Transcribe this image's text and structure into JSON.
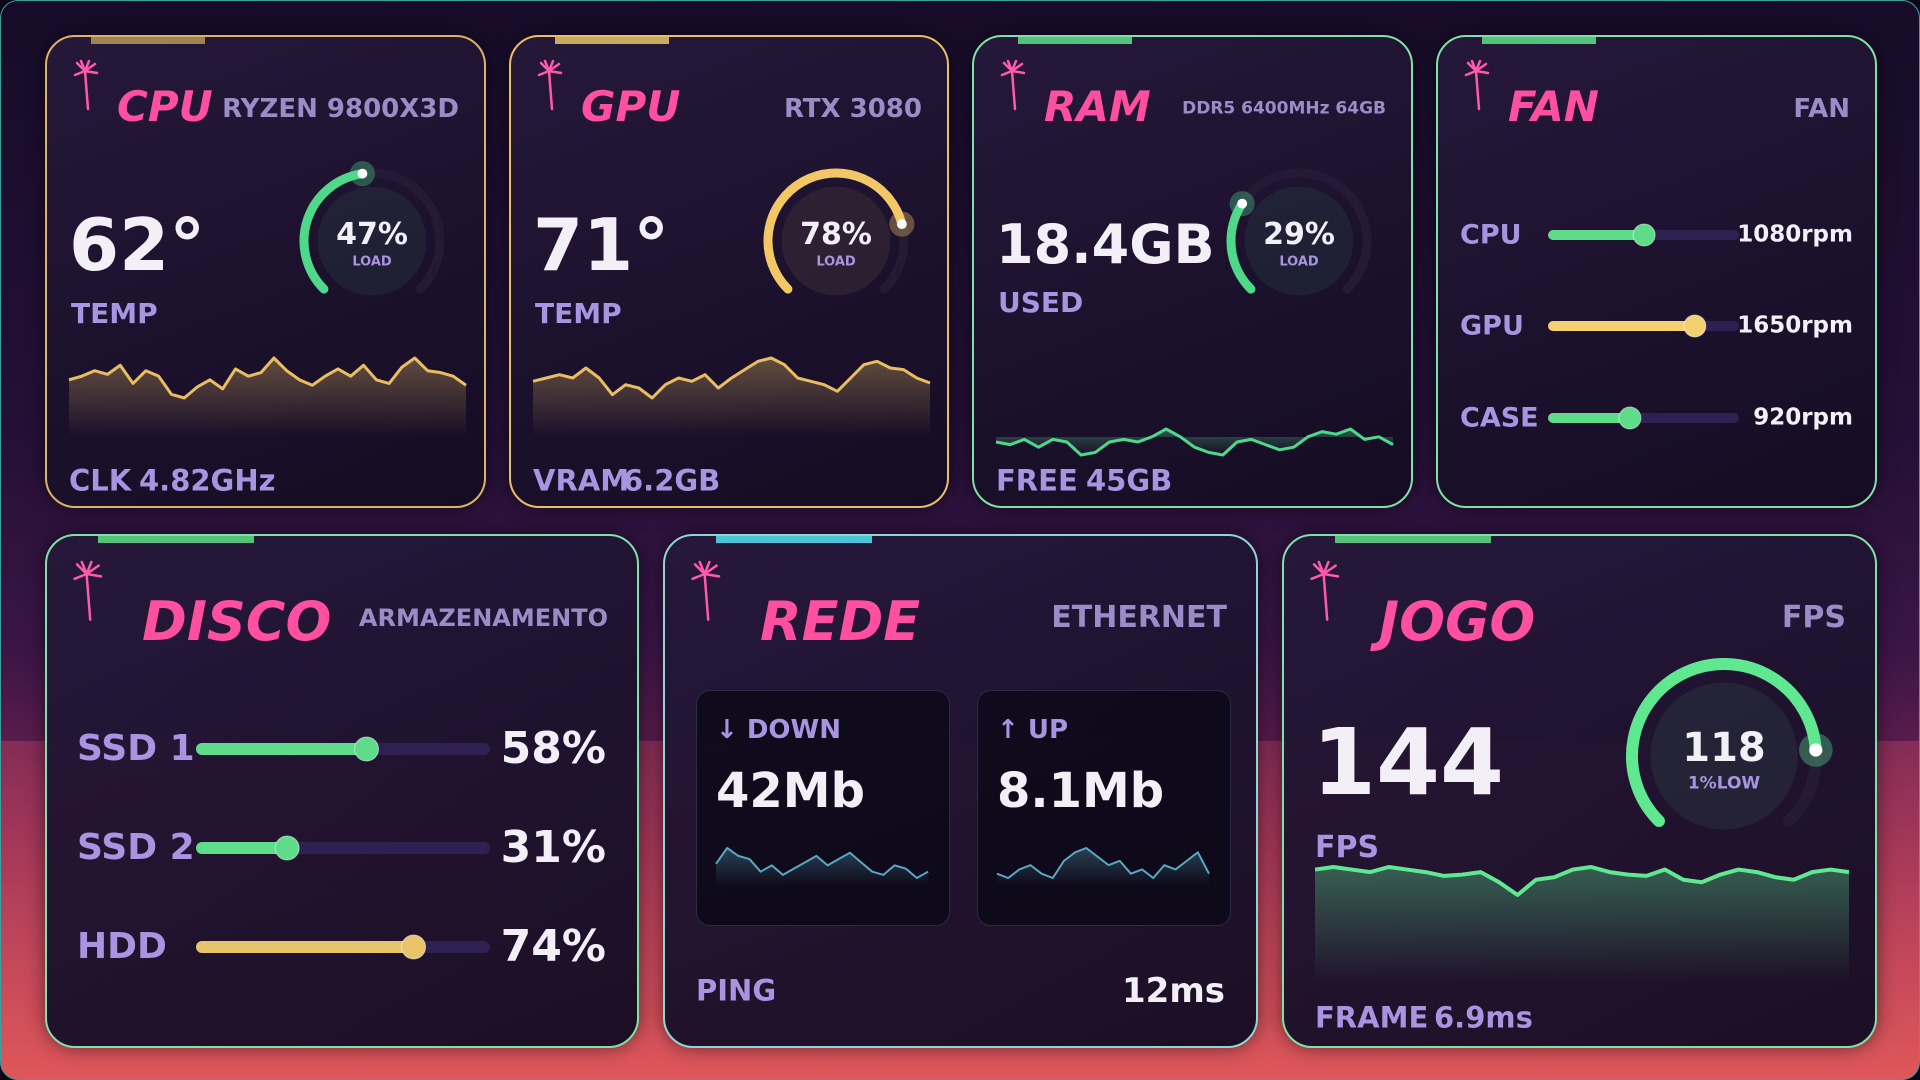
{
  "panels": [
    {
      "title": "CPU",
      "subtitle": "RYZEN 9800X3D",
      "reading": "62°",
      "reading_label": "TEMP",
      "gauge": {
        "value": 47,
        "label": "47%",
        "caption": "LOAD",
        "color": "#4fd88a"
      },
      "history": [
        50,
        52,
        55,
        53,
        58,
        48,
        55,
        52,
        42,
        40,
        46,
        50,
        45,
        56,
        52,
        54,
        62,
        55,
        50,
        47,
        52,
        56,
        52,
        58,
        50,
        48,
        57,
        62,
        55,
        54,
        52,
        47
      ],
      "history_color": "#e9bd62",
      "footer": {
        "label": "CLK",
        "value": "4.82GHz"
      }
    },
    {
      "title": "GPU",
      "subtitle": "RTX 3080",
      "reading": "71°",
      "reading_label": "TEMP",
      "gauge": {
        "value": 78,
        "label": "78%",
        "caption": "LOAD",
        "color": "#f3c766"
      },
      "history": [
        48,
        50,
        52,
        50,
        56,
        50,
        40,
        46,
        44,
        38,
        46,
        50,
        48,
        52,
        44,
        50,
        55,
        60,
        62,
        58,
        50,
        48,
        46,
        42,
        50,
        58,
        60,
        56,
        55,
        50,
        47
      ],
      "history_color": "#e9bd62",
      "footer": {
        "label": "VRAM",
        "value": "6.2GB"
      }
    },
    {
      "title": "RAM",
      "subtitle": "DDR5 6400MHz 64GB",
      "reading": "18.4GB",
      "reading_label": "USED",
      "gauge": {
        "value": 29,
        "label": "29%",
        "caption": "LOAD",
        "color": "#4fd88a"
      },
      "history": [
        40,
        38,
        42,
        36,
        42,
        40,
        30,
        32,
        40,
        42,
        40,
        44,
        50,
        44,
        36,
        32,
        30,
        40,
        42,
        38,
        34,
        36,
        44,
        48,
        46,
        50,
        42,
        44,
        38
      ],
      "history_color": "#4fd88a",
      "footer": {
        "label": "FREE",
        "value": "45GB"
      }
    },
    {
      "title": "FAN",
      "subtitle": "FAN",
      "fans": [
        {
          "name": "CPU",
          "rpm": 1080,
          "rpm_label": "1080rpm",
          "color": "#5edc8a"
        },
        {
          "name": "GPU",
          "rpm": 1650,
          "rpm_label": "1650rpm",
          "color": "#f5d070"
        },
        {
          "name": "CASE",
          "rpm": 920,
          "rpm_label": "920rpm",
          "color": "#5edc8a"
        }
      ]
    },
    {
      "title": "DISCO",
      "subtitle": "ARMAZENAMENTO",
      "drives": [
        {
          "name": "SSD 1",
          "used": 58,
          "used_label": "58%",
          "color": "#5edc8a"
        },
        {
          "name": "SSD 2",
          "used": 31,
          "used_label": "31%",
          "color": "#5edc8a"
        },
        {
          "name": "HDD",
          "used": 74,
          "used_label": "74%",
          "color": "#e8c46a"
        }
      ]
    },
    {
      "title": "REDE",
      "subtitle": "ETHERNET",
      "links": [
        {
          "label": "↓ DOWN",
          "value": "42Mb",
          "history": [
            45,
            55,
            50,
            48,
            40,
            44,
            38,
            42,
            46,
            50,
            44,
            48,
            52,
            46,
            40,
            38,
            44,
            42,
            36,
            40
          ]
        },
        {
          "label": "↑ UP",
          "value": "8.1Mb",
          "history": [
            40,
            38,
            42,
            44,
            40,
            38,
            46,
            50,
            52,
            48,
            44,
            46,
            40,
            42,
            38,
            44,
            42,
            46,
            50,
            40
          ]
        }
      ],
      "history_color": "#5aa8c0",
      "footer": {
        "label": "PING",
        "value": "12ms"
      }
    },
    {
      "title": "JOGO",
      "subtitle": "FPS",
      "fps": 144,
      "fps_label": "FPS",
      "gauge": {
        "value": 118,
        "caption": "1%LOW",
        "color": "#5fe890"
      },
      "history": [
        60,
        62,
        60,
        58,
        62,
        60,
        58,
        55,
        56,
        58,
        50,
        40,
        52,
        54,
        60,
        62,
        58,
        56,
        55,
        60,
        52,
        50,
        56,
        60,
        58,
        54,
        52,
        58,
        60,
        58
      ],
      "history_color": "#5fe890",
      "footer": {
        "label": "FRAME",
        "value": "6.9ms"
      }
    }
  ]
}
